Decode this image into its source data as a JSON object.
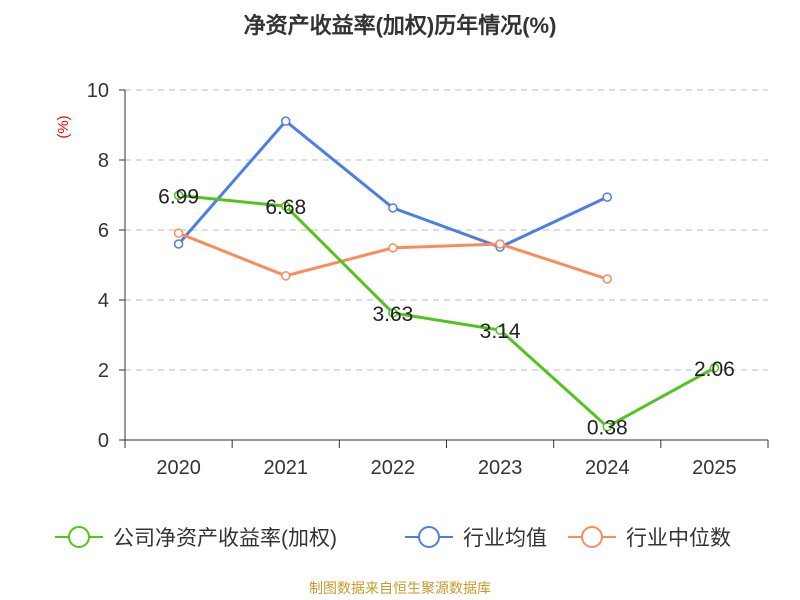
{
  "chart_data": {
    "type": "line",
    "title": "净资产收益率(加权)历年情况(%)",
    "ylabel": "(%)",
    "xlabel": "",
    "categories": [
      "2020",
      "2021",
      "2022",
      "2023",
      "2024",
      "2025"
    ],
    "ylim": [
      0,
      10
    ],
    "yticks": [
      0,
      2,
      4,
      6,
      8,
      10
    ],
    "grid": true,
    "legend_position": "bottom",
    "series": [
      {
        "name": "公司净资产收益率(加权)",
        "color": "#52c41a",
        "values": [
          6.99,
          6.68,
          3.63,
          3.14,
          0.38,
          2.06
        ],
        "labels": [
          "6.99",
          "6.68",
          "3.63",
          "3.14",
          "0.38",
          "2.06"
        ]
      },
      {
        "name": "行业均值",
        "color": "#4e7fe0",
        "values": [
          5.6,
          9.11,
          6.63,
          5.51,
          6.94,
          null
        ]
      },
      {
        "name": "行业中位数",
        "color": "#fb8c5a",
        "values": [
          5.91,
          4.69,
          5.49,
          5.6,
          4.6,
          null
        ]
      }
    ]
  },
  "footer": "制图数据来自恒生聚源数据库"
}
